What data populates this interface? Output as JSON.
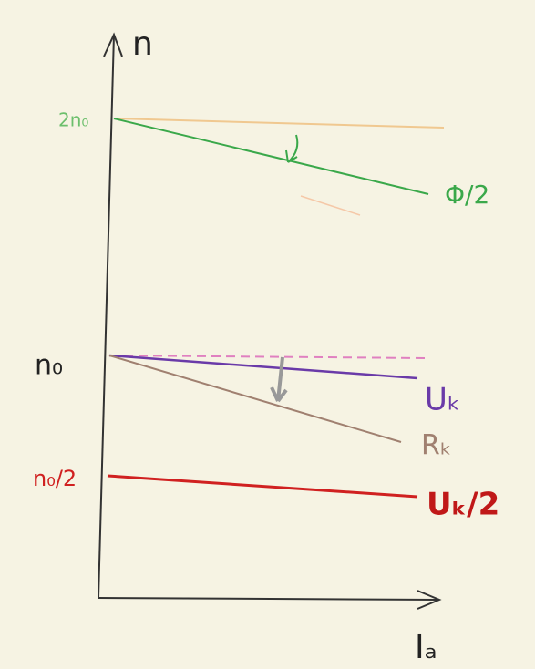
{
  "axes": {
    "y_label": "n",
    "x_label": "Iₐ"
  },
  "levels": [
    {
      "label": "2n₀"
    },
    {
      "label": "n₀"
    },
    {
      "label": "n₀/2"
    }
  ],
  "curves": [
    {
      "label": "Φ/2"
    },
    {
      "label": "Uₖ"
    },
    {
      "label": "Rₖ"
    },
    {
      "label": "Uₖ/2"
    }
  ]
}
